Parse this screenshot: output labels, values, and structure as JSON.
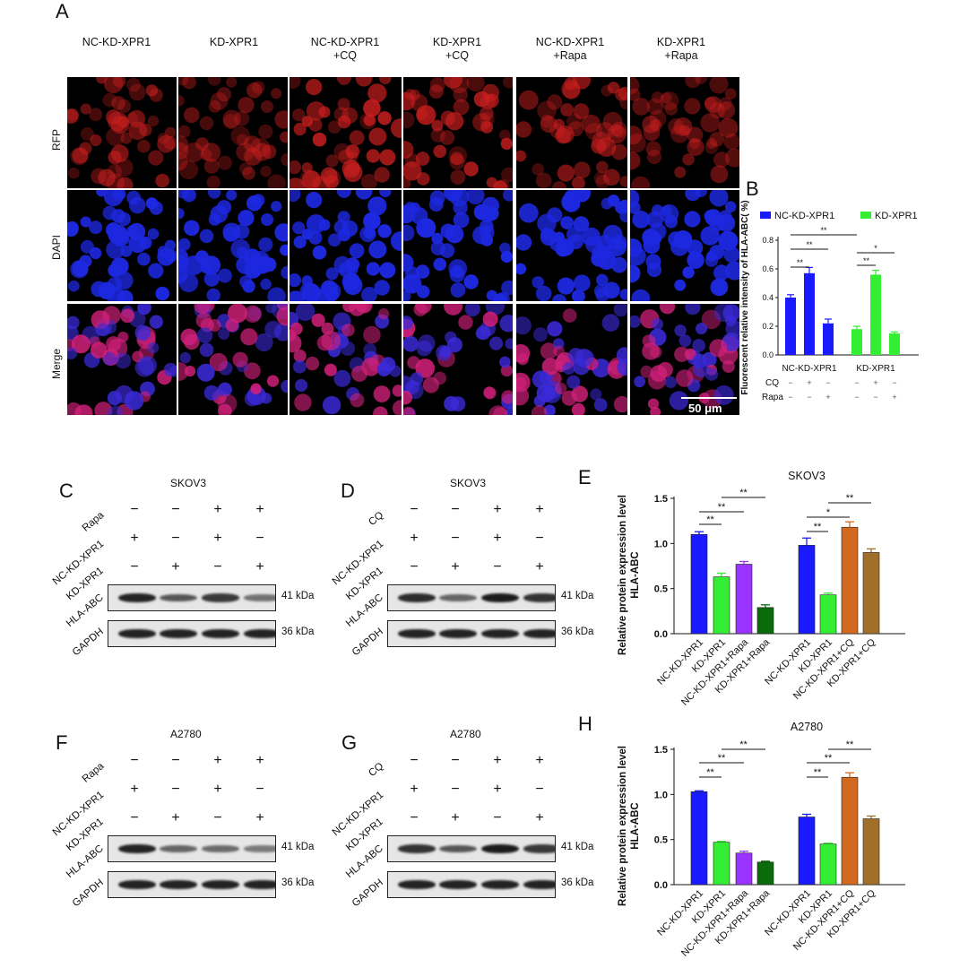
{
  "panels": {
    "A": "A",
    "B": "B",
    "C": "C",
    "D": "D",
    "E": "E",
    "F": "F",
    "G": "G",
    "H": "H"
  },
  "microscopy": {
    "columns": [
      "NC-KD-XPR1",
      "KD-XPR1",
      "NC-KD-XPR1\n+CQ",
      "KD-XPR1\n+CQ",
      "NC-KD-XPR1\n+Rapa",
      "KD-XPR1\n+Rapa"
    ],
    "rows": [
      "RFP",
      "DAPI",
      "Merge"
    ],
    "scalebar": "50 μm",
    "colors": {
      "rfp": "#c81e1e",
      "dapi": "#1d28e0",
      "merge_red": "#d0207a",
      "merge_blue": "#3a2ad8"
    },
    "rfp_intensity": [
      0.55,
      0.35,
      0.95,
      0.85,
      0.6,
      0.35
    ]
  },
  "blots": {
    "C": {
      "title": "SKOV3",
      "treatment": "Rapa",
      "rows": [
        "Rapa",
        "NC-KD-XPR1",
        "KD-XPR1"
      ],
      "signs": [
        [
          "−",
          "−",
          "+",
          "+"
        ],
        [
          "+",
          "−",
          "+",
          "−"
        ],
        [
          "−",
          "+",
          "−",
          "+"
        ]
      ],
      "proteins": [
        "HLA-ABC",
        "GAPDH"
      ],
      "kda": [
        "41 kDa",
        "36 kDa"
      ],
      "hla_intensity": [
        0.9,
        0.55,
        0.75,
        0.35
      ]
    },
    "D": {
      "title": "SKOV3",
      "treatment": "CQ",
      "rows": [
        "CQ",
        "NC-KD-XPR1",
        "KD-XPR1"
      ],
      "signs": [
        [
          "−",
          "−",
          "+",
          "+"
        ],
        [
          "+",
          "−",
          "+",
          "−"
        ],
        [
          "−",
          "+",
          "−",
          "+"
        ]
      ],
      "proteins": [
        "HLA-ABC",
        "GAPDH"
      ],
      "kda": [
        "41 kDa",
        "36 kDa"
      ],
      "hla_intensity": [
        0.85,
        0.45,
        0.95,
        0.8
      ]
    },
    "F": {
      "title": "A2780",
      "treatment": "Rapa",
      "rows": [
        "Rapa",
        "NC-KD-XPR1",
        "KD-XPR1"
      ],
      "signs": [
        [
          "−",
          "−",
          "+",
          "+"
        ],
        [
          "+",
          "−",
          "+",
          "−"
        ],
        [
          "−",
          "+",
          "−",
          "+"
        ]
      ],
      "proteins": [
        "HLA-ABC",
        "GAPDH"
      ],
      "kda": [
        "41 kDa",
        "36 kDa"
      ],
      "hla_intensity": [
        0.9,
        0.45,
        0.4,
        0.3
      ]
    },
    "G": {
      "title": "A2780",
      "treatment": "CQ",
      "rows": [
        "CQ",
        "NC-KD-XPR1",
        "KD-XPR1"
      ],
      "signs": [
        [
          "−",
          "−",
          "+",
          "+"
        ],
        [
          "+",
          "−",
          "+",
          "−"
        ],
        [
          "−",
          "+",
          "−",
          "+"
        ]
      ],
      "proteins": [
        "HLA-ABC",
        "GAPDH"
      ],
      "kda": [
        "41 kDa",
        "36 kDa"
      ],
      "hla_intensity": [
        0.8,
        0.55,
        0.95,
        0.75
      ]
    }
  },
  "chart_data": [
    {
      "id": "B",
      "type": "bar",
      "ylabel": "Fluorescent relative intensity of HLA-ABC( %)",
      "ylim": [
        0,
        0.8
      ],
      "yticks": [
        0.0,
        0.2,
        0.4,
        0.6,
        0.8
      ],
      "legend": [
        {
          "name": "NC-KD-XPR1",
          "color": "#1a1aff"
        },
        {
          "name": "KD-XPR1",
          "color": "#33ee33"
        }
      ],
      "groups": [
        {
          "label": "NC-KD-XPR1",
          "values": [
            0.4,
            0.57,
            0.22
          ],
          "errors": [
            0.02,
            0.04,
            0.03
          ],
          "color": "#1a1aff"
        },
        {
          "label": "KD-XPR1",
          "values": [
            0.18,
            0.56,
            0.15
          ],
          "errors": [
            0.02,
            0.03,
            0.01
          ],
          "color": "#33ee33"
        }
      ],
      "condition_rows": [
        {
          "label": "CQ",
          "signs": [
            "−",
            "+",
            "−",
            "−",
            "+",
            "−"
          ]
        },
        {
          "label": "Rapa",
          "signs": [
            "−",
            "−",
            "+",
            "−",
            "−",
            "+"
          ]
        }
      ],
      "significance": [
        "**",
        "**",
        "**",
        "**",
        "*"
      ]
    },
    {
      "id": "E",
      "type": "bar",
      "title": "SKOV3",
      "ylabel": "Relative protein expression level HLA-ABC",
      "ylim": [
        0,
        1.5
      ],
      "yticks": [
        0.0,
        0.5,
        1.0,
        1.5
      ],
      "categories": [
        "NC-KD-XPR1",
        "KD-XPR1",
        "NC-KD-XPR1+Rapa",
        "KD-XPR1+Rapa",
        "NC-KD-XPR1",
        "KD-XPR1",
        "NC-KD-XPR1+CQ",
        "KD-XPR1+CQ"
      ],
      "values": [
        1.1,
        0.63,
        0.77,
        0.29,
        0.98,
        0.43,
        1.18,
        0.9
      ],
      "errors": [
        0.03,
        0.04,
        0.03,
        0.03,
        0.08,
        0.02,
        0.06,
        0.04
      ],
      "colors": [
        "#1a1aff",
        "#33ee33",
        "#9933ff",
        "#0b6b0b",
        "#1a1aff",
        "#33ee33",
        "#d2691e",
        "#a0702a"
      ],
      "significance": [
        "**",
        "**",
        "**",
        "**",
        "*",
        "**"
      ]
    },
    {
      "id": "H",
      "type": "bar",
      "title": "A2780",
      "ylabel": "Relative protein expression level HLA-ABC",
      "ylim": [
        0,
        1.5
      ],
      "yticks": [
        0.0,
        0.5,
        1.0,
        1.5
      ],
      "categories": [
        "NC-KD-XPR1",
        "KD-XPR1",
        "NC-KD-XPR1+Rapa",
        "KD-XPR1+Rapa",
        "NC-KD-XPR1",
        "KD-XPR1",
        "NC-KD-XPR1+CQ",
        "KD-XPR1+CQ"
      ],
      "values": [
        1.03,
        0.47,
        0.35,
        0.25,
        0.75,
        0.45,
        1.19,
        0.73
      ],
      "errors": [
        0.01,
        0.01,
        0.02,
        0.01,
        0.03,
        0.01,
        0.05,
        0.03
      ],
      "colors": [
        "#1a1aff",
        "#33ee33",
        "#9933ff",
        "#0b6b0b",
        "#1a1aff",
        "#33ee33",
        "#d2691e",
        "#a0702a"
      ],
      "significance": [
        "**",
        "**",
        "**",
        "**",
        "**",
        "**"
      ]
    }
  ]
}
